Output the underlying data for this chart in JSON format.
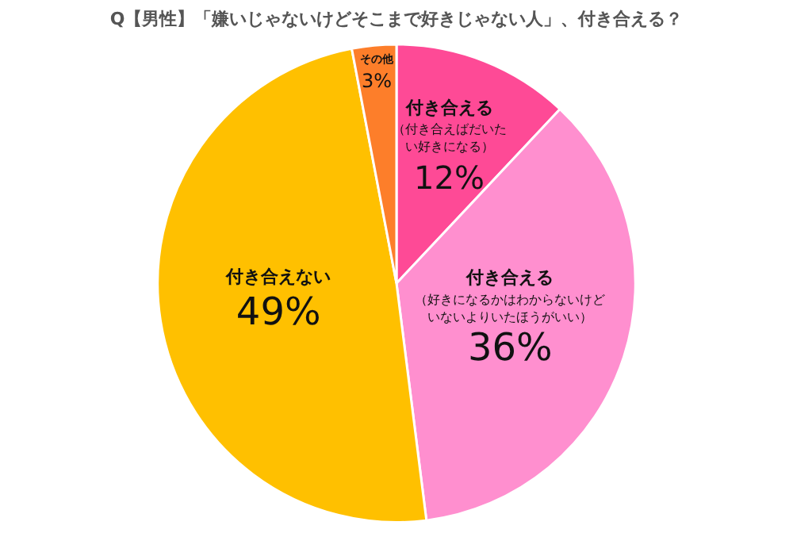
{
  "chart_data": {
    "type": "pie",
    "title": "Q【男性】「嫌いじゃないけどそこまで好きじゃない人」、付き合える？",
    "categories": [
      "付き合える（付き合えばだいたい好きになる）",
      "付き合える（好きになるかはわからないけどいないよりいたほうがいい）",
      "付き合えない",
      "その他"
    ],
    "values": [
      12,
      36,
      49,
      3
    ],
    "value_labels": [
      "12%",
      "36%",
      "49%",
      "3%"
    ],
    "colors": [
      "#fe4a96",
      "#ff8fcf",
      "#ffc000",
      "#fd7e2a"
    ],
    "legend": false
  }
}
